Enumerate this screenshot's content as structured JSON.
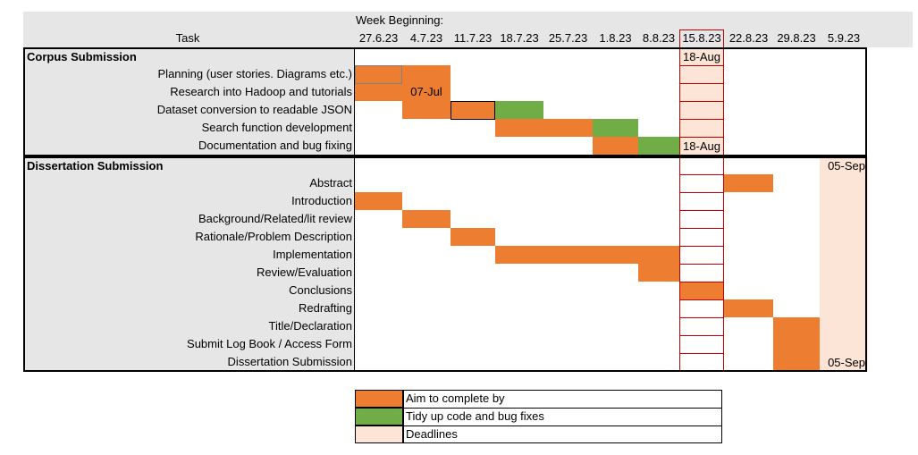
{
  "header": {
    "week_beginning_label": "Week Beginning:",
    "task_label": "Task",
    "weeks": [
      "27.6.23",
      "4.7.23",
      "11.7.23",
      "18.7.23",
      "25.7.23",
      "1.8.23",
      "8.8.23",
      "15.8.23",
      "22.8.23",
      "29.8.23",
      "5.9.23"
    ]
  },
  "colors": {
    "orange": "#ED7D31",
    "green": "#70AD47",
    "deadline": "#FCE4D6",
    "section_bg": "#E7E6E6",
    "deadline_border": "#C00000"
  },
  "sections": [
    {
      "title": "Corpus Submission",
      "tasks": [
        {
          "name": "Planning (user stories. Diagrams etc.)",
          "cells": [
            {
              "week": 0,
              "kind": "orange"
            },
            {
              "week": 1,
              "kind": "orange"
            }
          ]
        },
        {
          "name": "Research into Hadoop and tutorials",
          "cells": [
            {
              "week": 0,
              "kind": "orange"
            },
            {
              "week": 1,
              "kind": "orange",
              "label": "07-Jul"
            }
          ]
        },
        {
          "name": "Dataset conversion to readable JSON",
          "cells": [
            {
              "week": 1,
              "kind": "orange"
            },
            {
              "week": 2,
              "kind": "orange"
            },
            {
              "week": 3,
              "kind": "green"
            }
          ]
        },
        {
          "name": "Search function development",
          "cells": [
            {
              "week": 3,
              "kind": "orange"
            },
            {
              "week": 4,
              "kind": "orange"
            },
            {
              "week": 5,
              "kind": "green"
            }
          ]
        },
        {
          "name": "Documentation and bug fixing",
          "cells": [
            {
              "week": 5,
              "kind": "orange"
            },
            {
              "week": 6,
              "kind": "green"
            }
          ]
        }
      ]
    },
    {
      "title": "Dissertation Submission",
      "tasks": [
        {
          "name": "Abstract",
          "cells": [
            {
              "week": 8,
              "kind": "orange"
            }
          ]
        },
        {
          "name": "Introduction",
          "cells": [
            {
              "week": 0,
              "kind": "orange"
            }
          ]
        },
        {
          "name": "Background/Related/lit review",
          "cells": [
            {
              "week": 1,
              "kind": "orange"
            }
          ]
        },
        {
          "name": "Rationale/Problem Description",
          "cells": [
            {
              "week": 2,
              "kind": "orange"
            }
          ]
        },
        {
          "name": "Implementation",
          "cells": [
            {
              "week": 3,
              "kind": "orange"
            },
            {
              "week": 4,
              "kind": "orange"
            },
            {
              "week": 5,
              "kind": "orange"
            },
            {
              "week": 6,
              "kind": "orange"
            }
          ]
        },
        {
          "name": "Review/Evaluation",
          "cells": [
            {
              "week": 6,
              "kind": "orange"
            }
          ]
        },
        {
          "name": "Conclusions",
          "cells": [
            {
              "week": 7,
              "kind": "orange"
            }
          ]
        },
        {
          "name": "Redrafting",
          "cells": [
            {
              "week": 8,
              "kind": "orange"
            }
          ]
        },
        {
          "name": "Title/Declaration",
          "cells": [
            {
              "week": 9,
              "kind": "orange"
            }
          ]
        },
        {
          "name": "Submit Log Book / Access Form",
          "cells": [
            {
              "week": 9,
              "kind": "orange"
            }
          ]
        },
        {
          "name": "Dissertation Submission",
          "cells": [
            {
              "week": 9,
              "kind": "orange"
            }
          ]
        }
      ]
    }
  ],
  "deadline_labels": {
    "corpus_top": "18-Aug",
    "corpus_bottom": "18-Aug",
    "dissertation_top": "05-Sep",
    "dissertation_bottom": "05-Sep"
  },
  "legend": [
    {
      "kind": "orange",
      "label": "Aim to complete by"
    },
    {
      "kind": "green",
      "label": "Tidy up code and bug fixes"
    },
    {
      "kind": "deadline",
      "label": "Deadlines"
    }
  ]
}
